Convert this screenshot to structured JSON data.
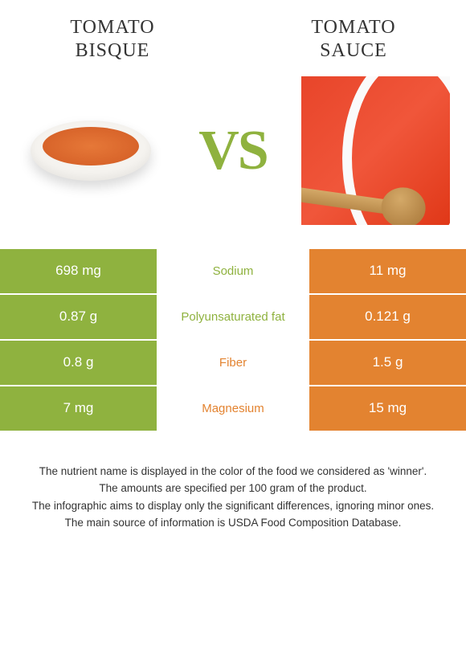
{
  "left": {
    "title_line1": "Tomato",
    "title_line2": "bisque"
  },
  "right": {
    "title_line1": "Tomato",
    "title_line2": "sauce"
  },
  "vs_label": "VS",
  "colors": {
    "green": "#8fb23f",
    "orange": "#e38330",
    "nutrient_green": "#8fb23f",
    "nutrient_orange": "#e38330"
  },
  "rows": [
    {
      "nutrient": "Sodium",
      "left_val": "698 mg",
      "right_val": "11 mg",
      "winner": "left",
      "nutrient_color": "#8fb23f"
    },
    {
      "nutrient": "Polyunsaturated fat",
      "left_val": "0.87 g",
      "right_val": "0.121 g",
      "winner": "left",
      "nutrient_color": "#8fb23f"
    },
    {
      "nutrient": "Fiber",
      "left_val": "0.8 g",
      "right_val": "1.5 g",
      "winner": "right",
      "nutrient_color": "#e38330"
    },
    {
      "nutrient": "Magnesium",
      "left_val": "7 mg",
      "right_val": "15 mg",
      "winner": "right",
      "nutrient_color": "#e38330"
    }
  ],
  "footer": [
    "The nutrient name is displayed in the color of the food we considered as 'winner'.",
    "The amounts are specified per 100 gram of the product.",
    "The infographic aims to display only the significant differences, ignoring minor ones.",
    "The main source of information is USDA Food Composition Database."
  ]
}
